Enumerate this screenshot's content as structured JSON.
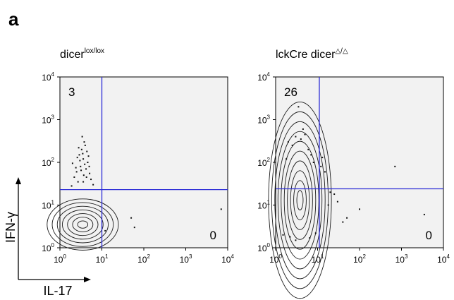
{
  "panel_label": "a",
  "axis_labels": {
    "x": "IL-17",
    "y": "IFN-γ"
  },
  "chart_data": [
    {
      "type": "scatter",
      "style": "contour-plus-dots",
      "title": {
        "base": "dicer",
        "superscript": "lox/lox"
      },
      "xlabel": "IL-17",
      "ylabel": "IFN-γ",
      "xscale": "log",
      "yscale": "log",
      "xlim": [
        1,
        10000
      ],
      "ylim": [
        1,
        10000
      ],
      "x_ticks": [
        {
          "base": "10",
          "exp": "0"
        },
        {
          "base": "10",
          "exp": "1"
        },
        {
          "base": "10",
          "exp": "2"
        },
        {
          "base": "10",
          "exp": "3"
        },
        {
          "base": "10",
          "exp": "4"
        }
      ],
      "y_ticks": [
        {
          "base": "10",
          "exp": "0"
        },
        {
          "base": "10",
          "exp": "1"
        },
        {
          "base": "10",
          "exp": "2"
        },
        {
          "base": "10",
          "exp": "3"
        },
        {
          "base": "10",
          "exp": "4"
        }
      ],
      "gate": {
        "x": 10,
        "y": 23
      },
      "quadrant_labels": {
        "upper_left": "3",
        "lower_right": "0"
      },
      "gate_color": "#2b2bd6",
      "plot_background": "#f2f2f2",
      "population": {
        "center": [
          3.5,
          3.5
        ],
        "spread": [
          0.85,
          0.6
        ],
        "contour_levels": 7
      },
      "points": [
        [
          2.5,
          60
        ],
        [
          3.1,
          80
        ],
        [
          3.6,
          120
        ],
        [
          4.2,
          70
        ],
        [
          2.9,
          150
        ],
        [
          3.3,
          200
        ],
        [
          4.6,
          100
        ],
        [
          2.2,
          45
        ],
        [
          5.1,
          55
        ],
        [
          3.8,
          300
        ],
        [
          4.4,
          180
        ],
        [
          2.7,
          35
        ],
        [
          3.0,
          110
        ],
        [
          3.9,
          90
        ],
        [
          2.4,
          75
        ],
        [
          5.5,
          40
        ],
        [
          6.2,
          30
        ],
        [
          1.9,
          28
        ],
        [
          3.4,
          400
        ],
        [
          4.0,
          250
        ],
        [
          2.6,
          130
        ],
        [
          3.2,
          65
        ],
        [
          4.8,
          140
        ],
        [
          3.7,
          50
        ],
        [
          2.0,
          95
        ],
        [
          5.0,
          80
        ],
        [
          3.5,
          160
        ],
        [
          4.3,
          45
        ],
        [
          2.8,
          220
        ],
        [
          3.6,
          35
        ],
        [
          50,
          5
        ],
        [
          60,
          3
        ],
        [
          7000,
          8
        ],
        [
          12,
          2.5
        ]
      ]
    },
    {
      "type": "scatter",
      "style": "contour-plus-dots",
      "title": {
        "base": "lckCre dicer",
        "superscript": "△/△"
      },
      "xlabel": "IL-17",
      "ylabel": "IFN-γ",
      "xscale": "log",
      "yscale": "log",
      "xlim": [
        1,
        10000
      ],
      "ylim": [
        1,
        10000
      ],
      "x_ticks": [
        {
          "base": "10",
          "exp": "0"
        },
        {
          "base": "10",
          "exp": "1"
        },
        {
          "base": "10",
          "exp": "2"
        },
        {
          "base": "10",
          "exp": "3"
        },
        {
          "base": "10",
          "exp": "4"
        }
      ],
      "y_ticks": [
        {
          "base": "10",
          "exp": "0"
        },
        {
          "base": "10",
          "exp": "1"
        },
        {
          "base": "10",
          "exp": "2"
        },
        {
          "base": "10",
          "exp": "3"
        },
        {
          "base": "10",
          "exp": "4"
        }
      ],
      "gate": {
        "x": 11,
        "y": 24
      },
      "quadrant_labels": {
        "upper_left": "26",
        "lower_right": "0"
      },
      "gate_color": "#2b2bd6",
      "plot_background": "#f2f2f2",
      "population": {
        "center": [
          3.8,
          13
        ],
        "spread": [
          0.75,
          2.3
        ],
        "contour_levels": 10
      },
      "points": [
        [
          2.0,
          300
        ],
        [
          3.0,
          400
        ],
        [
          5.0,
          450
        ],
        [
          4.0,
          350
        ],
        [
          6.0,
          200
        ],
        [
          7.0,
          150
        ],
        [
          2.5,
          250
        ],
        [
          1.8,
          120
        ],
        [
          8.0,
          100
        ],
        [
          12,
          80
        ],
        [
          15,
          60
        ],
        [
          20,
          20
        ],
        [
          25,
          18
        ],
        [
          30,
          12
        ],
        [
          50,
          5
        ],
        [
          40,
          4
        ],
        [
          700,
          80
        ],
        [
          100,
          8
        ],
        [
          3500,
          6
        ],
        [
          1.5,
          2
        ],
        [
          2.2,
          1.8
        ],
        [
          3.0,
          1.5
        ],
        [
          6.5,
          1.7
        ],
        [
          9,
          2.2
        ],
        [
          4.5,
          600
        ],
        [
          3.5,
          2000
        ],
        [
          13,
          130
        ],
        [
          18,
          10
        ]
      ]
    }
  ]
}
